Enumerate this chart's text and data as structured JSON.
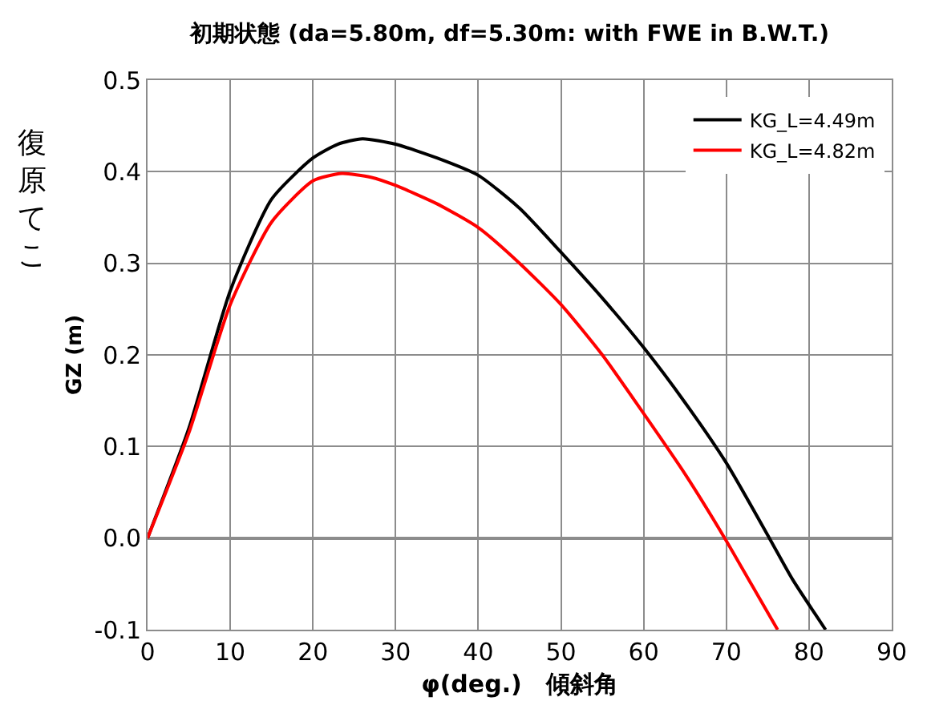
{
  "chart_data": {
    "type": "line",
    "title": "初期状態 (da=5.80m, df=5.30m: with FWE in B.W.T.)",
    "xlabel": "φ(deg.)　傾斜角",
    "ylabel": "GZ (m)",
    "annotations": [
      "復原てこ"
    ],
    "series": [
      {
        "name": "KG_L=4.49m",
        "color": "#000000",
        "x": [
          0,
          5,
          10,
          15,
          20,
          23,
          26,
          30,
          35,
          40,
          45,
          50,
          55,
          60,
          65,
          70,
          75.2,
          78,
          82
        ],
        "values": [
          0,
          0.12,
          0.27,
          0.37,
          0.415,
          0.43,
          0.436,
          0.43,
          0.415,
          0.396,
          0.36,
          0.312,
          0.262,
          0.208,
          0.148,
          0.082,
          0,
          -0.045,
          -0.1
        ]
      },
      {
        "name": "KG_L=4.82m",
        "color": "#ff0000",
        "x": [
          0,
          5,
          10,
          15,
          20,
          23.5,
          27,
          30,
          35,
          40,
          45,
          50,
          55,
          60,
          65,
          69.8,
          73,
          76.2
        ],
        "values": [
          0,
          0.115,
          0.255,
          0.345,
          0.39,
          0.398,
          0.394,
          0.385,
          0.365,
          0.339,
          0.3,
          0.255,
          0.2,
          0.136,
          0.07,
          0,
          -0.05,
          -0.1
        ]
      }
    ],
    "xlim": [
      0,
      90
    ],
    "xticks": [
      0,
      10,
      20,
      30,
      40,
      50,
      60,
      70,
      80,
      90
    ],
    "ylim": [
      -0.1,
      0.5
    ],
    "yticks": [
      {
        "value": -0.1,
        "label": "-0.1"
      },
      {
        "value": 0,
        "label": "0.0"
      },
      {
        "value": 0.1,
        "label": "0.1"
      },
      {
        "value": 0.2,
        "label": "0.2"
      },
      {
        "value": 0.3,
        "label": "0.3"
      },
      {
        "value": 0.4,
        "label": "0.4"
      },
      {
        "value": 0.5,
        "label": "0.5"
      }
    ],
    "grid": true,
    "legend": "top right",
    "marker": "none",
    "line_style": "solid"
  }
}
